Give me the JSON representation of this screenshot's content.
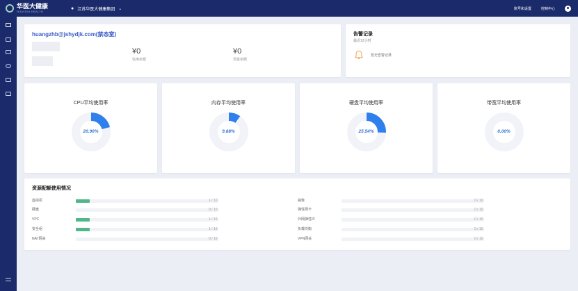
{
  "header": {
    "logo_cn": "华医大健康",
    "logo_en": "HUAYIDA HEALTH",
    "org": "江苏华医大健康集团",
    "account_settings": "账号和设置",
    "console": "控制中心"
  },
  "account": {
    "email": "huangzhb@jshydjk.com(",
    "email_suffix": "禁态室)",
    "credit_balance_value": "¥0",
    "credit_balance_label": "信用余额",
    "cash_balance_value": "¥0",
    "cash_balance_label": "现金余额"
  },
  "alarm": {
    "title": "告警记录",
    "subtitle": "最近12小时",
    "empty": "暂无告警记录",
    "bell_color": "#f0a04b"
  },
  "gauges": [
    {
      "title": "CPU平均使用率",
      "value": 20.9,
      "label": "20.90%"
    },
    {
      "title": "内存平均使用率",
      "value": 9.88,
      "label": "9.88%"
    },
    {
      "title": "硬盘平均使用率",
      "value": 25.54,
      "label": "25.54%"
    },
    {
      "title": "带宽平均使用率",
      "value": 0,
      "label": "0.00%"
    }
  ],
  "resources": {
    "title": "资源配额使用情况",
    "left": [
      {
        "label": "虚拟机",
        "used": 1,
        "total": 10,
        "count": "1 / 10"
      },
      {
        "label": "硬盘",
        "used": 0,
        "total": 10,
        "count": "0 / 10"
      },
      {
        "label": "VPC",
        "used": 1,
        "total": 10,
        "count": "1 / 10"
      },
      {
        "label": "安全组",
        "used": 1,
        "total": 10,
        "count": "1 / 10"
      },
      {
        "label": "NAT网关",
        "used": 0,
        "total": 10,
        "count": "0 / 10"
      }
    ],
    "right": [
      {
        "label": "镜像",
        "used": 0,
        "total": 10,
        "count": "0 / 10"
      },
      {
        "label": "弹性网卡",
        "used": 0,
        "total": 10,
        "count": "0 / 10"
      },
      {
        "label": "外网弹性IP",
        "used": 0,
        "total": 10,
        "count": "0 / 10"
      },
      {
        "label": "负载均衡",
        "used": 0,
        "total": 10,
        "count": "0 / 10"
      },
      {
        "label": "VPN网关",
        "used": 0,
        "total": 10,
        "count": "0 / 10"
      }
    ]
  },
  "colors": {
    "primary": "#1b2a6b",
    "accent": "#2f80ed",
    "ring": "#f1f3f8",
    "bar": "#52b788"
  }
}
